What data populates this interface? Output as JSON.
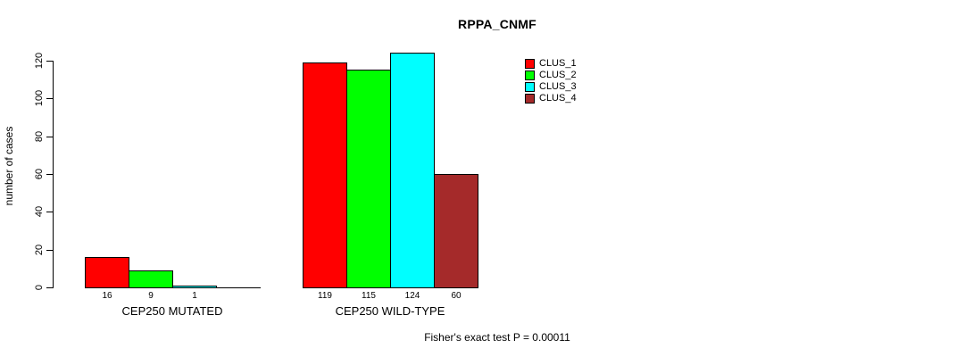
{
  "chart_data": {
    "type": "bar",
    "title": "RPPA_CNMF",
    "ylabel": "number of cases",
    "xlabel": "",
    "yticks": [
      0,
      20,
      40,
      60,
      80,
      100,
      120
    ],
    "ylim": [
      0,
      124
    ],
    "grid": false,
    "legend_position": "top-right",
    "series": [
      {
        "name": "CLUS_1",
        "color": "#ff0000"
      },
      {
        "name": "CLUS_2",
        "color": "#00ff00"
      },
      {
        "name": "CLUS_3",
        "color": "#00ffff"
      },
      {
        "name": "CLUS_4",
        "color": "#a52a2a"
      }
    ],
    "groups": [
      {
        "label": "CEP250 MUTATED",
        "values": [
          16,
          9,
          1,
          0
        ],
        "bar_labels": [
          "16",
          "9",
          "1",
          ""
        ]
      },
      {
        "label": "CEP250 WILD-TYPE",
        "values": [
          119,
          115,
          124,
          60
        ],
        "bar_labels": [
          "119",
          "115",
          "124",
          "60"
        ]
      }
    ],
    "footnote": "Fisher's exact test P = 0.00011",
    "axis_color": "#000000",
    "text_color": "#000000",
    "background_color": "#ffffff"
  }
}
